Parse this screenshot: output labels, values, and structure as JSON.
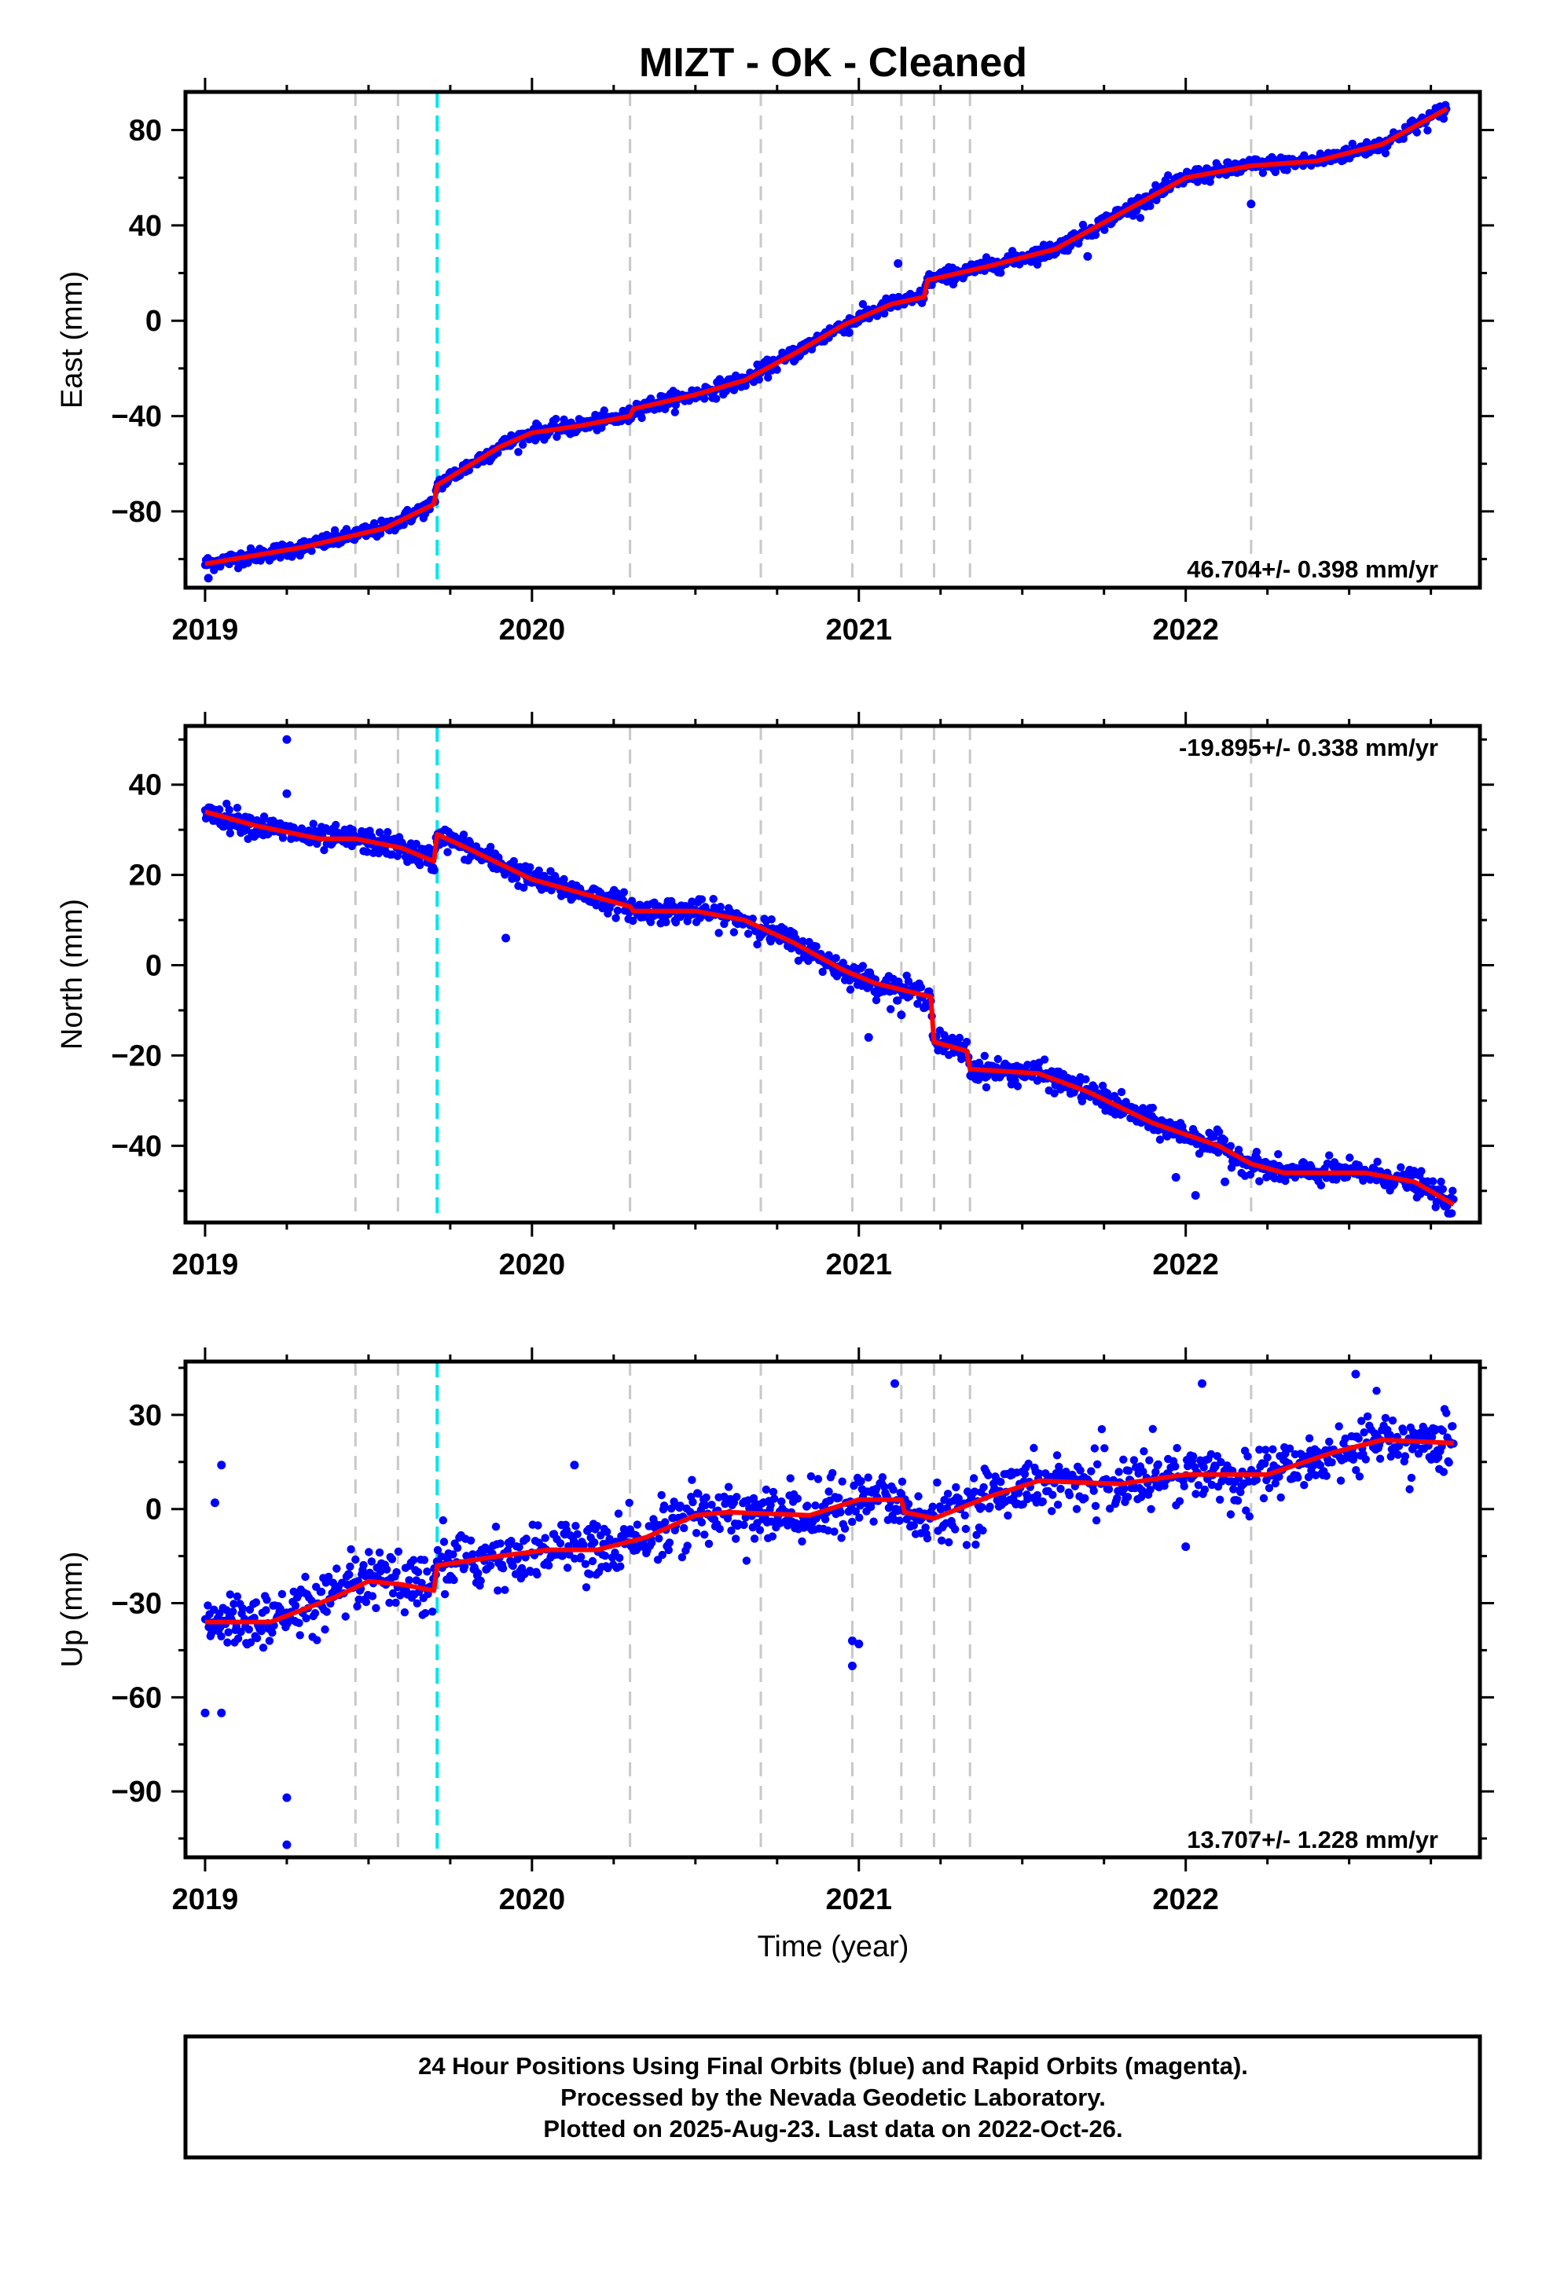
{
  "title": "MIZT  - OK - Cleaned",
  "xaxis_label": "Time (year)",
  "x_ticks": [
    "2019",
    "2020",
    "2021",
    "2022"
  ],
  "colors": {
    "points": "#0000ff",
    "model": "#ff0000",
    "offset_gray": "#c8c8c8",
    "offset_cyan": "#00e5ee"
  },
  "footer": {
    "line1": "24 Hour Positions Using Final Orbits (blue) and Rapid Orbits (magenta).",
    "line2": "Processed by the Nevada Geodetic Laboratory.",
    "line3": "Plotted on 2025-Aug-23. Last data on 2022-Oct-26."
  },
  "chart_data": [
    {
      "type": "scatter",
      "ylabel": "East (mm)",
      "rate_text": "46.704+/- 0.398 mm/yr",
      "xlim": [
        2018.94,
        2022.9
      ],
      "ylim": [
        -112,
        96
      ],
      "y_ticks": [
        80,
        40,
        0,
        -40,
        -80
      ],
      "equipment_changes": [
        2019.46,
        2019.59,
        2020.3,
        2020.7,
        2020.98,
        2021.13,
        2021.23,
        2021.34,
        2022.2
      ],
      "earthquakes": [
        2019.71
      ],
      "trend": [
        [
          2019.0,
          -102
        ],
        [
          2019.3,
          -95
        ],
        [
          2019.55,
          -87
        ],
        [
          2019.7,
          -77
        ],
        [
          2019.71,
          -69
        ],
        [
          2019.9,
          -53
        ],
        [
          2020.0,
          -47
        ],
        [
          2020.15,
          -44
        ],
        [
          2020.3,
          -40
        ],
        [
          2020.31,
          -37
        ],
        [
          2020.5,
          -31
        ],
        [
          2020.65,
          -25
        ],
        [
          2020.8,
          -14
        ],
        [
          2020.95,
          -2
        ],
        [
          2021.1,
          7
        ],
        [
          2021.2,
          10
        ],
        [
          2021.21,
          17
        ],
        [
          2021.4,
          23
        ],
        [
          2021.6,
          30
        ],
        [
          2021.8,
          45
        ],
        [
          2022.0,
          60
        ],
        [
          2022.2,
          65
        ],
        [
          2022.4,
          67
        ],
        [
          2022.6,
          74
        ],
        [
          2022.8,
          89
        ]
      ],
      "outliers": [
        [
          2021.7,
          27
        ],
        [
          2022.2,
          49
        ],
        [
          2020.97,
          -5
        ],
        [
          2021.12,
          24
        ],
        [
          2019.01,
          -108
        ]
      ]
    },
    {
      "type": "scatter",
      "ylabel": "North (mm)",
      "rate_text": "-19.895+/- 0.338 mm/yr",
      "xlim": [
        2018.94,
        2022.9
      ],
      "ylim": [
        -57,
        53
      ],
      "y_ticks": [
        40,
        20,
        0,
        -20,
        -40
      ],
      "equipment_changes": [
        2019.46,
        2019.59,
        2020.3,
        2020.7,
        2020.98,
        2021.13,
        2021.23,
        2021.34,
        2022.2
      ],
      "earthquakes": [
        2019.71
      ],
      "trend": [
        [
          2019.0,
          34
        ],
        [
          2019.15,
          31
        ],
        [
          2019.35,
          28
        ],
        [
          2019.46,
          28
        ],
        [
          2019.6,
          26
        ],
        [
          2019.7,
          23
        ],
        [
          2019.71,
          29
        ],
        [
          2019.8,
          26
        ],
        [
          2020.0,
          19
        ],
        [
          2020.15,
          16
        ],
        [
          2020.3,
          13
        ],
        [
          2020.31,
          12
        ],
        [
          2020.5,
          12
        ],
        [
          2020.65,
          10
        ],
        [
          2020.8,
          5
        ],
        [
          2020.95,
          -1
        ],
        [
          2021.05,
          -4
        ],
        [
          2021.22,
          -7
        ],
        [
          2021.23,
          -17
        ],
        [
          2021.33,
          -19
        ],
        [
          2021.34,
          -23
        ],
        [
          2021.55,
          -24
        ],
        [
          2021.7,
          -28
        ],
        [
          2021.9,
          -35
        ],
        [
          2022.1,
          -40
        ],
        [
          2022.2,
          -44
        ],
        [
          2022.3,
          -46
        ],
        [
          2022.55,
          -46
        ],
        [
          2022.7,
          -48
        ],
        [
          2022.82,
          -53
        ]
      ],
      "outliers": [
        [
          2019.25,
          50
        ],
        [
          2019.25,
          38
        ],
        [
          2019.92,
          6
        ],
        [
          2021.03,
          -16
        ],
        [
          2021.13,
          -11
        ],
        [
          2022.03,
          -51
        ],
        [
          2021.97,
          -47
        ],
        [
          2022.12,
          -48
        ]
      ]
    },
    {
      "type": "scatter",
      "ylabel": "Up (mm)",
      "rate_text": "13.707+/- 1.228 mm/yr",
      "xlim": [
        2018.94,
        2022.9
      ],
      "ylim": [
        -111,
        47
      ],
      "y_ticks": [
        30,
        0,
        -30,
        -60,
        -90
      ],
      "equipment_changes": [
        2019.46,
        2019.59,
        2020.3,
        2020.7,
        2020.98,
        2021.13,
        2021.23,
        2021.34,
        2022.2
      ],
      "earthquakes": [
        2019.71
      ],
      "trend": [
        [
          2019.0,
          -36
        ],
        [
          2019.2,
          -36
        ],
        [
          2019.4,
          -28
        ],
        [
          2019.5,
          -23
        ],
        [
          2019.6,
          -24
        ],
        [
          2019.7,
          -26
        ],
        [
          2019.71,
          -18
        ],
        [
          2019.9,
          -15
        ],
        [
          2020.05,
          -13
        ],
        [
          2020.2,
          -13
        ],
        [
          2020.35,
          -9
        ],
        [
          2020.5,
          -2
        ],
        [
          2020.6,
          -1
        ],
        [
          2020.85,
          -2
        ],
        [
          2021.0,
          3
        ],
        [
          2021.13,
          3
        ],
        [
          2021.14,
          -1
        ],
        [
          2021.23,
          -3
        ],
        [
          2021.4,
          4
        ],
        [
          2021.55,
          9
        ],
        [
          2021.8,
          8
        ],
        [
          2022.0,
          11
        ],
        [
          2022.25,
          11
        ],
        [
          2022.45,
          18
        ],
        [
          2022.6,
          22
        ],
        [
          2022.82,
          21
        ]
      ],
      "outliers": [
        [
          2019.0,
          -65
        ],
        [
          2019.05,
          -65
        ],
        [
          2019.25,
          -92
        ],
        [
          2019.25,
          -107
        ],
        [
          2019.03,
          2
        ],
        [
          2019.05,
          14
        ],
        [
          2020.98,
          -50
        ],
        [
          2020.98,
          -42
        ],
        [
          2021.0,
          -43
        ],
        [
          2021.11,
          40
        ],
        [
          2022.0,
          -12
        ],
        [
          2022.05,
          40
        ],
        [
          2022.52,
          43
        ],
        [
          2020.13,
          14
        ]
      ]
    }
  ]
}
